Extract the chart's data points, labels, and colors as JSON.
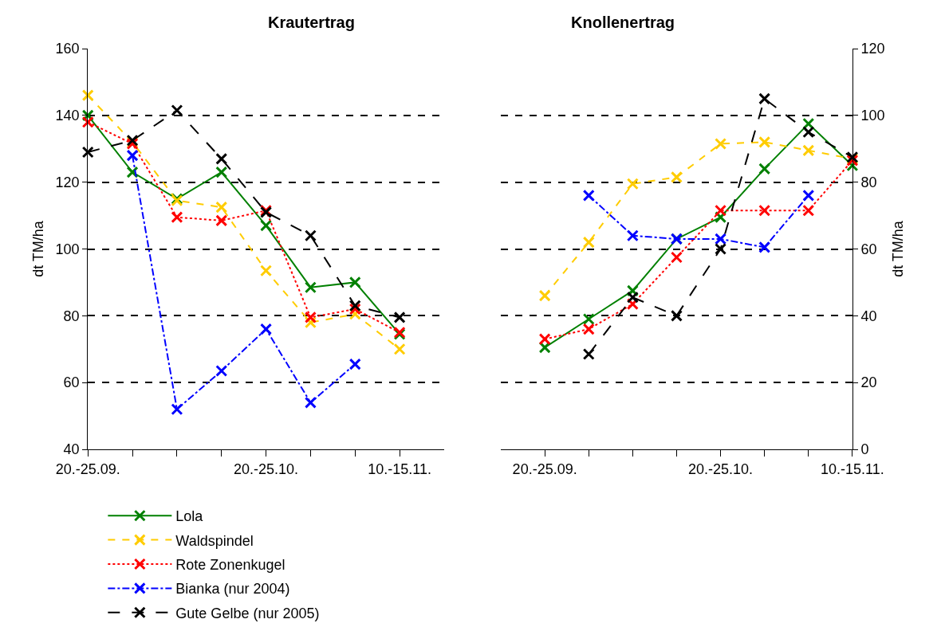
{
  "chart_data": [
    {
      "type": "line",
      "title": "Krautertrag",
      "ylabel": "dt TM/ha",
      "categories": [
        "20.-25.09.",
        null,
        null,
        null,
        "20.-25.10.",
        null,
        null,
        "10.-15.11."
      ],
      "series": [
        {
          "name": "Lola",
          "color": "#008000",
          "line_style": "solid",
          "values": [
            140,
            123,
            115,
            123,
            107,
            88.5,
            90,
            74.5
          ]
        },
        {
          "name": "Waldspindel",
          "color": "#ffcc00",
          "line_style": "dashed",
          "values": [
            146,
            132,
            114.5,
            112.5,
            93.5,
            78,
            80.5,
            70
          ]
        },
        {
          "name": "Rote Zonenkugel",
          "color": "#ff0000",
          "line_style": "dotted",
          "values": [
            138,
            131.5,
            109.5,
            108.5,
            111.5,
            79.5,
            82,
            75
          ]
        },
        {
          "name": "Bianka (nur 2004)",
          "color": "#0000ff",
          "line_style": "dashdot",
          "values": [
            null,
            128,
            52,
            63.5,
            76,
            54,
            65.5,
            null
          ]
        },
        {
          "name": "Gute Gelbe (nur 2005)",
          "color": "#000000",
          "line_style": "longdash",
          "values": [
            129,
            132.5,
            141.5,
            127,
            111,
            104,
            83,
            79.5
          ]
        }
      ],
      "ylim": [
        40,
        160
      ],
      "yticks": [
        40,
        60,
        80,
        100,
        120,
        140,
        160
      ],
      "grid": "y",
      "marker": "cross",
      "legend": "bottom"
    },
    {
      "type": "line",
      "title": "Knollenertrag",
      "ylabel": "dt TM/ha",
      "categories": [
        "20.-25.09.",
        null,
        null,
        null,
        "20.-25.10.",
        null,
        null,
        "10.-15.11."
      ],
      "series": [
        {
          "name": "Lola",
          "color": "#008000",
          "line_style": "solid",
          "values": [
            30.5,
            39,
            47.5,
            63,
            69.5,
            84,
            97.5,
            85
          ]
        },
        {
          "name": "Waldspindel",
          "color": "#ffcc00",
          "line_style": "dashed",
          "values": [
            46,
            62,
            79.5,
            81.5,
            91.5,
            92,
            89.5,
            87
          ]
        },
        {
          "name": "Rote Zonenkugel",
          "color": "#ff0000",
          "line_style": "dotted",
          "values": [
            33,
            36,
            43.5,
            57.5,
            71.5,
            71.5,
            71.5,
            86.5
          ]
        },
        {
          "name": "Bianka (nur 2004)",
          "color": "#0000ff",
          "line_style": "dashdot",
          "values": [
            null,
            76,
            64,
            63,
            63,
            60.5,
            76,
            null
          ]
        },
        {
          "name": "Gute Gelbe (nur 2005)",
          "color": "#000000",
          "line_style": "longdash",
          "values": [
            null,
            28.5,
            45.5,
            40,
            60,
            105,
            95,
            87.5
          ]
        }
      ],
      "ylim": [
        0,
        120
      ],
      "yticks": [
        0,
        20,
        40,
        60,
        80,
        100,
        120
      ],
      "grid": "y",
      "marker": "cross",
      "legend": "bottom"
    }
  ]
}
